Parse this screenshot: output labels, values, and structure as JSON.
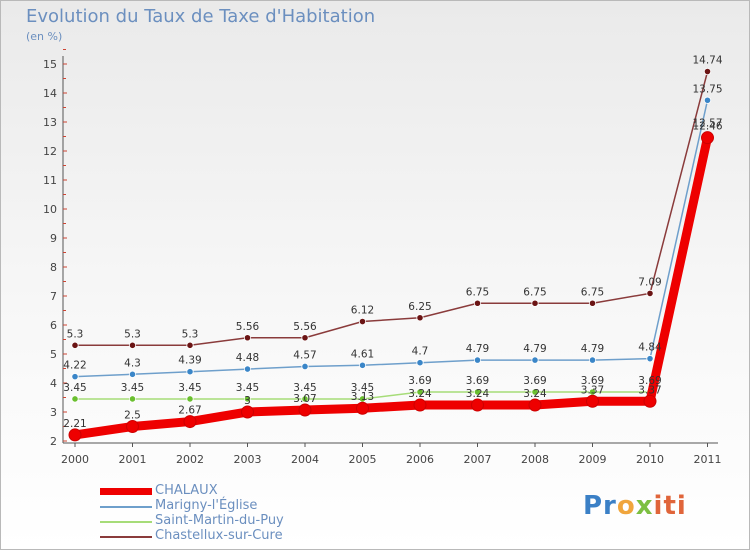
{
  "title": "Evolution du Taux de Taxe d'Habitation",
  "subtitle": "(en %)",
  "logo": {
    "p1": "Pr",
    "p2": "o",
    "p3": "x",
    "p4": "iti"
  },
  "chart_data": {
    "type": "line",
    "title": "Evolution du Taux de Taxe d'Habitation",
    "ylabel": "(en %)",
    "xlabel": "",
    "ylim": [
      2,
      15
    ],
    "yticks": [
      "2",
      "3",
      "4",
      "5",
      "6",
      "7",
      "8",
      "9",
      "10",
      "11",
      "12",
      "13",
      "14",
      "15"
    ],
    "categories": [
      "2000",
      "2001",
      "2002",
      "2003",
      "2004",
      "2005",
      "2006",
      "2007",
      "2008",
      "2009",
      "2010",
      "2011"
    ],
    "grid": false,
    "legend_position": "bottom-left",
    "series": [
      {
        "name": "CHALAUX",
        "color": "#ee0000",
        "emphasis": true,
        "values": [
          2.21,
          2.5,
          2.67,
          3,
          3.07,
          3.13,
          3.24,
          3.24,
          3.24,
          3.37,
          3.37,
          12.46
        ],
        "labels": [
          "2.21",
          "2.5",
          "2.67",
          "3",
          "3.07",
          "3.13",
          "3.24",
          "3.24",
          "3.24",
          "3.37",
          "3.37",
          "12.46"
        ]
      },
      {
        "name": "Marigny-l'Église",
        "color": "#6e9fcb",
        "marker": "#3a86c8",
        "values": [
          4.22,
          4.3,
          4.39,
          4.48,
          4.57,
          4.61,
          4.7,
          4.79,
          4.79,
          4.79,
          4.84,
          13.75
        ],
        "labels": [
          "4.22",
          "4.3",
          "4.39",
          "4.48",
          "4.57",
          "4.61",
          "4.7",
          "4.79",
          "4.79",
          "4.79",
          "4.84",
          "13.75"
        ]
      },
      {
        "name": "Saint-Martin-du-Puy",
        "color": "#a6dc78",
        "marker": "#6abf2f",
        "values": [
          3.45,
          3.45,
          3.45,
          3.45,
          3.45,
          3.45,
          3.69,
          3.69,
          3.69,
          3.69,
          3.69,
          12.57
        ],
        "labels": [
          "3.45",
          "3.45",
          "3.45",
          "3.45",
          "3.45",
          "3.45",
          "3.69",
          "3.69",
          "3.69",
          "3.69",
          "3.69",
          "12.57"
        ]
      },
      {
        "name": "Chastellux-sur-Cure",
        "color": "#8a3b3b",
        "marker": "#6b1414",
        "values": [
          5.3,
          5.3,
          5.3,
          5.56,
          5.56,
          6.12,
          6.25,
          6.75,
          6.75,
          6.75,
          7.09,
          14.74
        ],
        "labels": [
          "5.3",
          "5.3",
          "5.3",
          "5.56",
          "5.56",
          "6.12",
          "6.25",
          "6.75",
          "6.75",
          "6.75",
          "7.09",
          "14.74"
        ]
      }
    ]
  }
}
